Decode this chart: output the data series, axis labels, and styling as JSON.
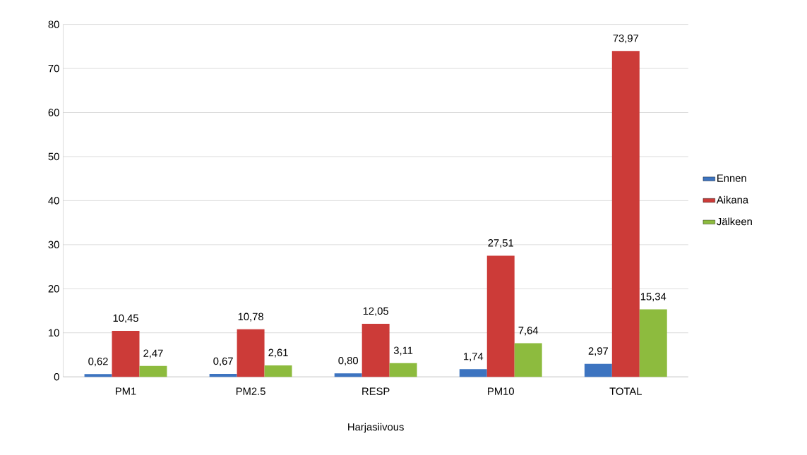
{
  "chart_data": {
    "type": "bar",
    "xlabel": "Harjasiivous",
    "categories": [
      "PM1",
      "PM2.5",
      "RESP",
      "PM10",
      "TOTAL"
    ],
    "series": [
      {
        "name": "Ennen",
        "color": "#3d74c0",
        "values": [
          0.62,
          0.67,
          0.8,
          1.74,
          2.97
        ],
        "value_labels": [
          "0,62",
          "0,67",
          "0,80",
          "1,74",
          "2,97"
        ]
      },
      {
        "name": "Aikana",
        "color": "#cc3b38",
        "values": [
          10.45,
          10.78,
          12.05,
          27.51,
          73.97
        ],
        "value_labels": [
          "10,45",
          "10,78",
          "12,05",
          "27,51",
          "73,97"
        ]
      },
      {
        "name": "Jälkeen",
        "color": "#8dbb3e",
        "values": [
          2.47,
          2.61,
          3.11,
          7.64,
          15.34
        ],
        "value_labels": [
          "2,47",
          "2,61",
          "3,11",
          "7,64",
          "15,34"
        ]
      }
    ],
    "ylim": [
      0,
      80
    ],
    "yticks": [
      0,
      10,
      20,
      30,
      40,
      50,
      60,
      70,
      80
    ],
    "grid": "y",
    "legend": "right"
  }
}
